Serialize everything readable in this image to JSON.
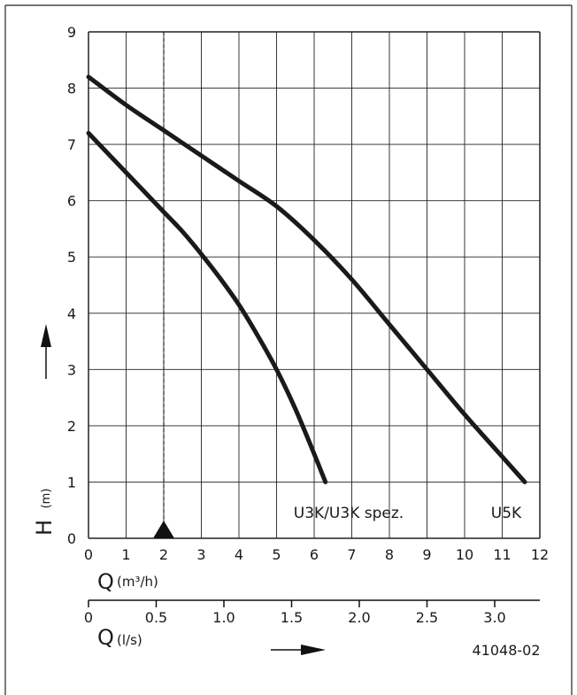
{
  "chart_data": {
    "type": "line",
    "xlabel": "Q",
    "xunit": "(m³/h)",
    "ylabel": "H",
    "yunit": "(m)",
    "xlim": [
      0,
      12
    ],
    "ylim": [
      0,
      9
    ],
    "grid": true,
    "x_ticks": [
      "0",
      "1",
      "2",
      "3",
      "4",
      "5",
      "6",
      "7",
      "8",
      "9",
      "10",
      "11",
      "12"
    ],
    "y_ticks": [
      "0",
      "1",
      "2",
      "3",
      "4",
      "5",
      "6",
      "7",
      "8",
      "9"
    ],
    "series": [
      {
        "name": "U3K/U3K spez.",
        "x": [
          0,
          0.5,
          1,
          1.5,
          2,
          2.5,
          3,
          3.5,
          4,
          4.5,
          5,
          5.5,
          6,
          6.3
        ],
        "y": [
          7.2,
          6.85,
          6.5,
          6.15,
          5.8,
          5.45,
          5.05,
          4.62,
          4.15,
          3.6,
          3.0,
          2.3,
          1.5,
          1.0
        ]
      },
      {
        "name": "U5K",
        "x": [
          0,
          1,
          2,
          3,
          4,
          5,
          6,
          7,
          8,
          9,
          10,
          11,
          11.6
        ],
        "y": [
          8.2,
          7.7,
          7.25,
          6.8,
          6.35,
          5.9,
          5.3,
          4.6,
          3.8,
          3.0,
          2.2,
          1.45,
          1.0
        ]
      }
    ],
    "marker_line": {
      "x": 2
    },
    "secondary_axis": {
      "label": "Q",
      "unit": "(l/s)",
      "ticks": [
        {
          "value": 0,
          "label": "0"
        },
        {
          "value": 0.5,
          "label": "0.5"
        },
        {
          "value": 1.0,
          "label": "1.0"
        },
        {
          "value": 1.5,
          "label": "1.5"
        },
        {
          "value": 2.0,
          "label": "2.0"
        },
        {
          "value": 2.5,
          "label": "2.5"
        },
        {
          "value": 3.0,
          "label": "3.0"
        }
      ]
    },
    "figure_id": "41048-02"
  }
}
